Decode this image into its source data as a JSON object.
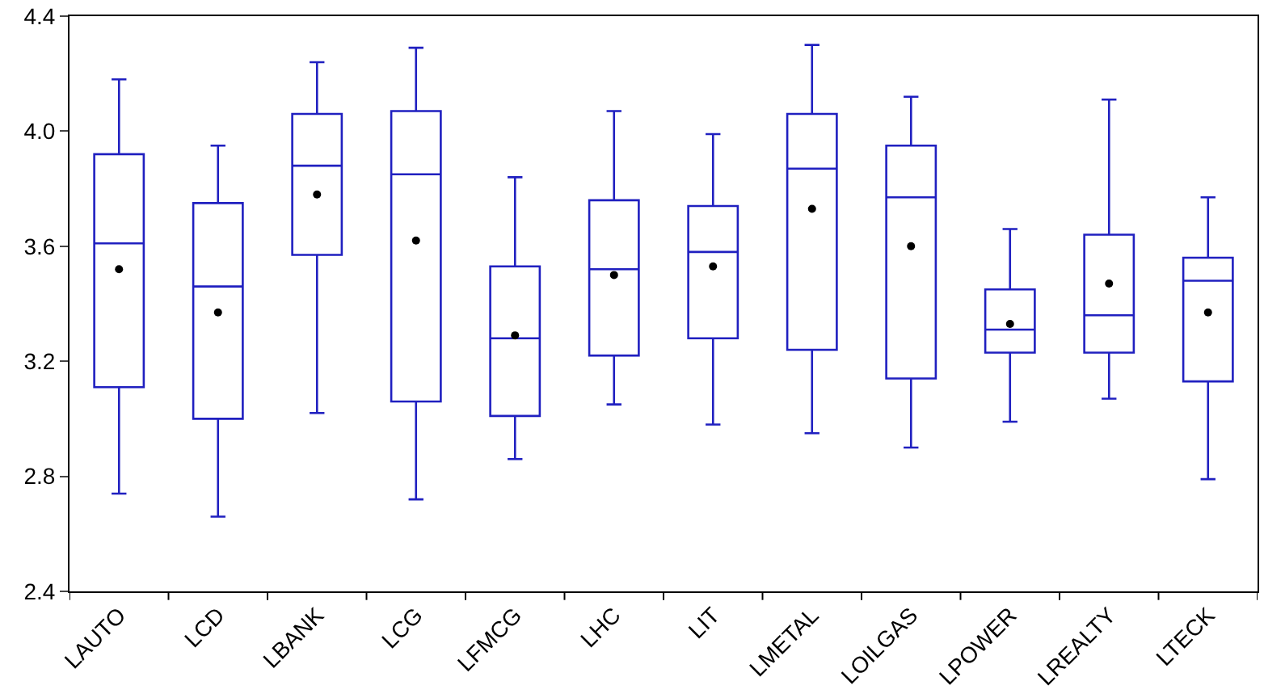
{
  "chart_data": {
    "type": "box",
    "categories": [
      "LAUTO",
      "LCD",
      "LBANK",
      "LCG",
      "LFMCG",
      "LHC",
      "LIT",
      "LMETAL",
      "LOILGAS",
      "LPOWER",
      "LREALTY",
      "LTECK"
    ],
    "color": "#2020c0",
    "boxes": [
      {
        "low": 2.74,
        "q1": 3.11,
        "median": 3.61,
        "q3": 3.92,
        "high": 4.18,
        "mean": 3.52
      },
      {
        "low": 2.66,
        "q1": 3.0,
        "median": 3.46,
        "q3": 3.75,
        "high": 3.95,
        "mean": 3.37
      },
      {
        "low": 3.02,
        "q1": 3.57,
        "median": 3.88,
        "q3": 4.06,
        "high": 4.24,
        "mean": 3.78
      },
      {
        "low": 2.72,
        "q1": 3.06,
        "median": 3.85,
        "q3": 4.07,
        "high": 4.29,
        "mean": 3.62
      },
      {
        "low": 2.86,
        "q1": 3.01,
        "median": 3.28,
        "q3": 3.53,
        "high": 3.84,
        "mean": 3.29
      },
      {
        "low": 3.05,
        "q1": 3.22,
        "median": 3.52,
        "q3": 3.76,
        "high": 4.07,
        "mean": 3.5
      },
      {
        "low": 2.98,
        "q1": 3.28,
        "median": 3.58,
        "q3": 3.74,
        "high": 3.99,
        "mean": 3.53
      },
      {
        "low": 2.95,
        "q1": 3.24,
        "median": 3.87,
        "q3": 4.06,
        "high": 4.3,
        "mean": 3.73
      },
      {
        "low": 2.9,
        "q1": 3.14,
        "median": 3.77,
        "q3": 3.95,
        "high": 4.12,
        "mean": 3.6
      },
      {
        "low": 2.99,
        "q1": 3.23,
        "median": 3.31,
        "q3": 3.45,
        "high": 3.66,
        "mean": 3.33
      },
      {
        "low": 3.07,
        "q1": 3.23,
        "median": 3.36,
        "q3": 3.64,
        "high": 4.11,
        "mean": 3.47
      },
      {
        "low": 2.79,
        "q1": 3.13,
        "median": 3.48,
        "q3": 3.56,
        "high": 3.77,
        "mean": 3.37
      }
    ],
    "ylim": [
      2.4,
      4.4
    ],
    "yticks": [
      {
        "value": 2.4,
        "label": "2.4"
      },
      {
        "value": 2.8,
        "label": "2.8"
      },
      {
        "value": 3.2,
        "label": "3.2"
      },
      {
        "value": 3.6,
        "label": "3.6"
      },
      {
        "value": 4.0,
        "label": "4.0"
      },
      {
        "value": 4.4,
        "label": "4.4"
      }
    ],
    "grid": false
  }
}
